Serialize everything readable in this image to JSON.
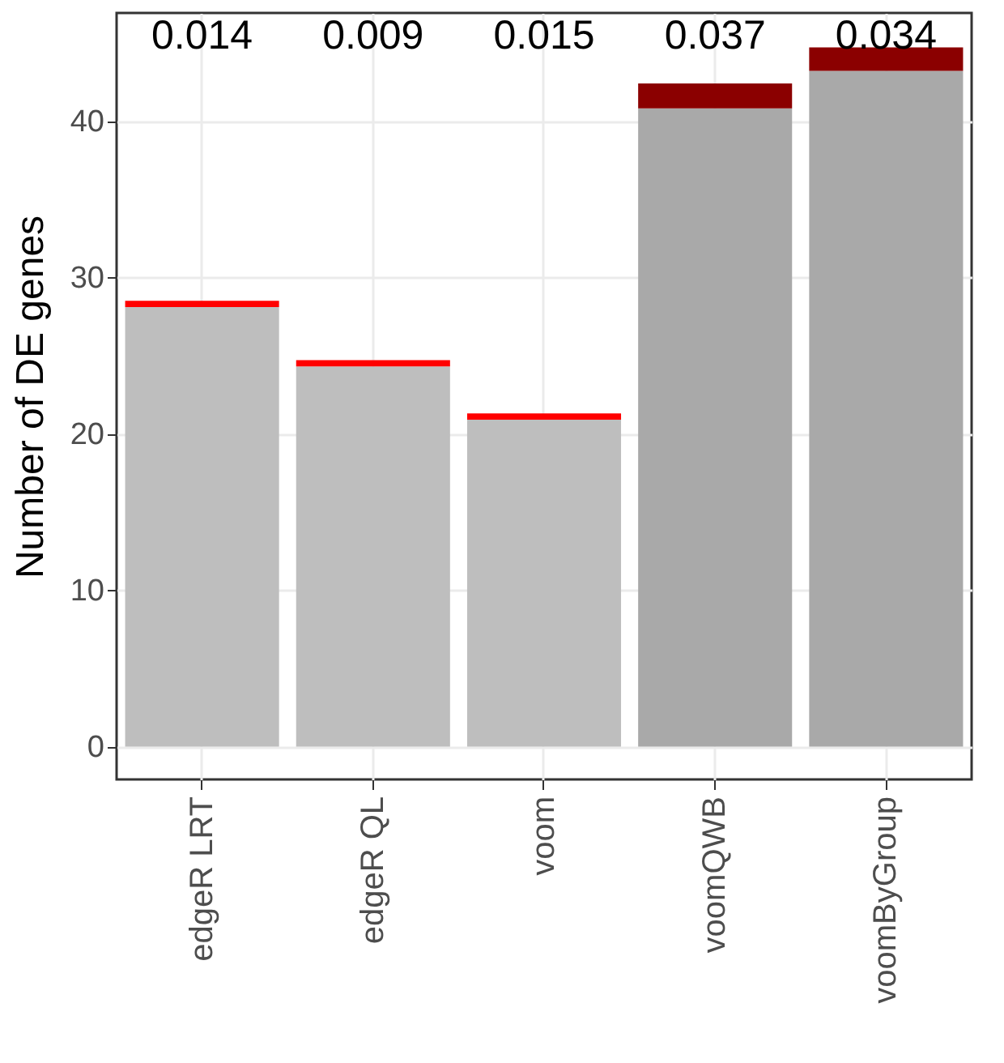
{
  "chart_data": {
    "type": "bar",
    "stacked": true,
    "ylabel": "Number of DE genes",
    "categories": [
      "edgeR LRT",
      "edgeR QL",
      "voom",
      "voomQWB",
      "voomByGroup"
    ],
    "series": [
      {
        "colors": [
          "#bebebe",
          "#bebebe",
          "#bebebe",
          "#a9a9a9",
          "#a9a9a9"
        ],
        "values": [
          28.1,
          24.3,
          20.9,
          40.8,
          43.2
        ]
      },
      {
        "colors": [
          "#ff0000",
          "#ff0000",
          "#ff0000",
          "#8b0000",
          "#8b0000"
        ],
        "values": [
          0.4,
          0.4,
          0.4,
          1.6,
          1.5
        ]
      }
    ],
    "ylim": [
      -2.1,
      46.9
    ],
    "yticks": [
      0,
      10,
      20,
      30,
      40
    ],
    "grid": true,
    "annotations": [
      "0.014",
      "0.009",
      "0.015",
      "0.037",
      "0.034"
    ]
  }
}
